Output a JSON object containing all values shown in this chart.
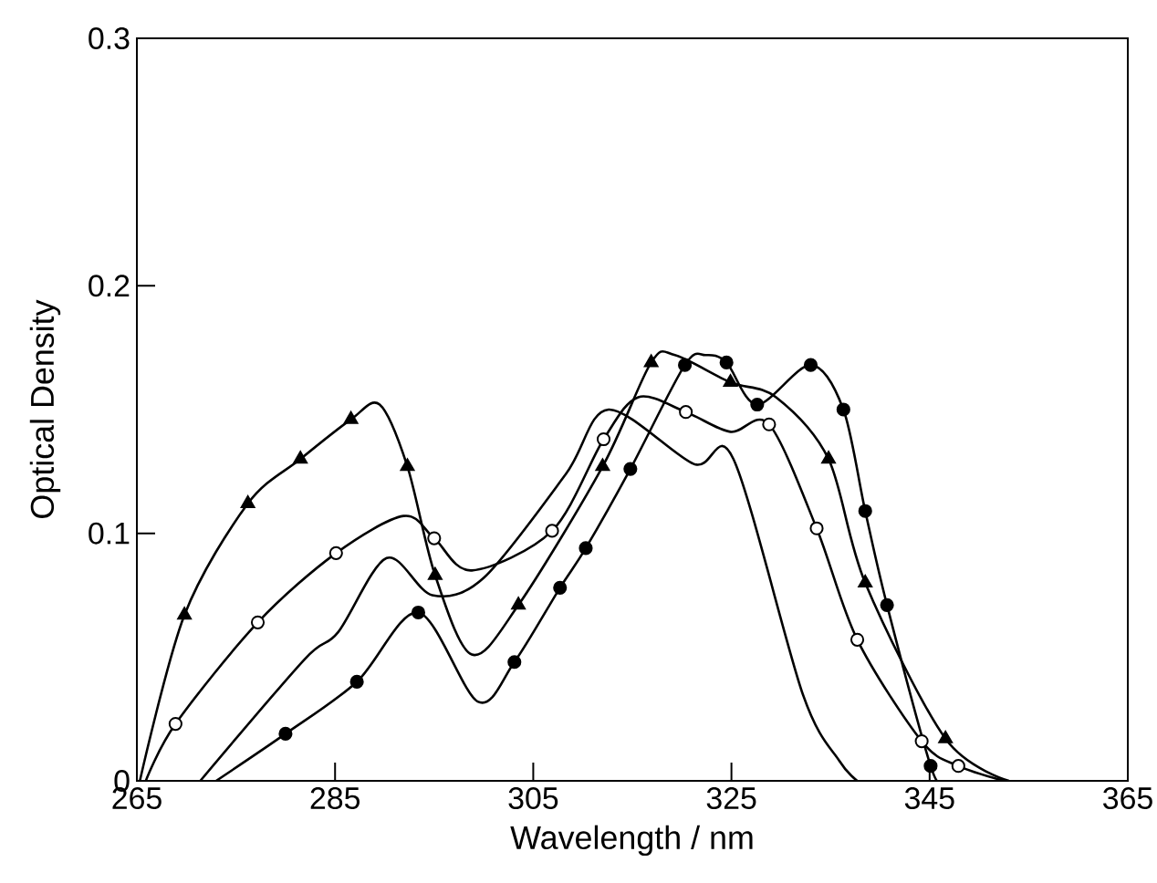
{
  "chart_data": {
    "type": "line",
    "xlabel": "Wavelength / nm",
    "ylabel": "Optical Density",
    "xlim": [
      265,
      365
    ],
    "ylim": [
      0,
      0.3
    ],
    "xticks": [
      265,
      285,
      305,
      325,
      345,
      365
    ],
    "yticks": [
      {
        "value": 0,
        "label": "0"
      },
      0.1,
      0.2,
      0.3
    ],
    "grid": false,
    "series": [
      {
        "marker": "none",
        "color": "#000000",
        "x": [
          265.3,
          269.8,
          276.2,
          281.5,
          286.6,
          289.5,
          292.3,
          295.1,
          298.8,
          303.5,
          312,
          316.9,
          319.3,
          324.9,
          329.5,
          334.8,
          338.5,
          346.6,
          353
        ],
        "values": [
          0,
          0.067,
          0.112,
          0.13,
          0.146,
          0.152,
          0.127,
          0.083,
          0.051,
          0.071,
          0.127,
          0.169,
          0.172,
          0.161,
          0.155,
          0.13,
          0.08,
          0.017,
          0
        ]
      },
      {
        "type": "scatter",
        "marker": "triangle",
        "color": "#000000",
        "x": [
          269.8,
          276.2,
          281.5,
          286.6,
          292.3,
          295.1,
          303.5,
          312,
          316.9,
          324.9,
          334.8,
          338.5,
          346.6
        ],
        "values": [
          0.067,
          0.112,
          0.13,
          0.146,
          0.127,
          0.083,
          0.071,
          0.127,
          0.169,
          0.161,
          0.13,
          0.08,
          0.017
        ]
      },
      {
        "marker": "none",
        "color": "#000000",
        "x": [
          265.9,
          268.9,
          277.2,
          285.1,
          291.9,
          295,
          298.8,
          306.9,
          312.1,
          315.6,
          320.4,
          324.9,
          328.8,
          333.6,
          337.7,
          344.2,
          347.9,
          352.5
        ],
        "values": [
          0,
          0.023,
          0.064,
          0.092,
          0.107,
          0.098,
          0.085,
          0.101,
          0.138,
          0.155,
          0.149,
          0.141,
          0.144,
          0.102,
          0.057,
          0.016,
          0.006,
          0
        ]
      },
      {
        "type": "scatter",
        "marker": "circle",
        "color": "#ffffff",
        "x": [
          268.9,
          277.2,
          285.1,
          295,
          306.9,
          312.1,
          320.4,
          328.8,
          333.6,
          337.7,
          344.2,
          347.9
        ],
        "values": [
          0.023,
          0.064,
          0.092,
          0.098,
          0.101,
          0.138,
          0.149,
          0.144,
          0.102,
          0.057,
          0.016,
          0.006
        ]
      },
      {
        "marker": "none",
        "color": "#000000",
        "x": [
          271.4,
          281.9,
          285.3,
          290.2,
          294.8,
          300,
          308.3,
          312.6,
          321.2,
          325.2,
          332.2,
          335.9,
          337.7
        ],
        "values": [
          0,
          0.049,
          0.06,
          0.09,
          0.075,
          0.082,
          0.124,
          0.15,
          0.128,
          0.13,
          0.035,
          0.008,
          0
        ]
      },
      {
        "marker": "none",
        "color": "#000000",
        "x": [
          273,
          280,
          287.2,
          293.4,
          299.4,
          303.1,
          307.7,
          310.3,
          314.8,
          320.3,
          322.4,
          324.5,
          327.6,
          333,
          336.3,
          338.5,
          340.7,
          345.1,
          346.3
        ],
        "values": [
          0,
          0.019,
          0.04,
          0.068,
          0.032,
          0.048,
          0.078,
          0.094,
          0.126,
          0.168,
          0.172,
          0.169,
          0.152,
          0.168,
          0.15,
          0.109,
          0.071,
          0.006,
          0
        ]
      },
      {
        "type": "scatter",
        "marker": "circle",
        "color": "#000000",
        "x": [
          280,
          287.2,
          293.4,
          303.1,
          307.7,
          310.3,
          314.8,
          320.3,
          324.5,
          327.6,
          333,
          336.3,
          338.5,
          340.7,
          345.1
        ],
        "values": [
          0.019,
          0.04,
          0.068,
          0.048,
          0.078,
          0.094,
          0.126,
          0.168,
          0.169,
          0.152,
          0.168,
          0.15,
          0.109,
          0.071,
          0.006
        ]
      }
    ]
  }
}
